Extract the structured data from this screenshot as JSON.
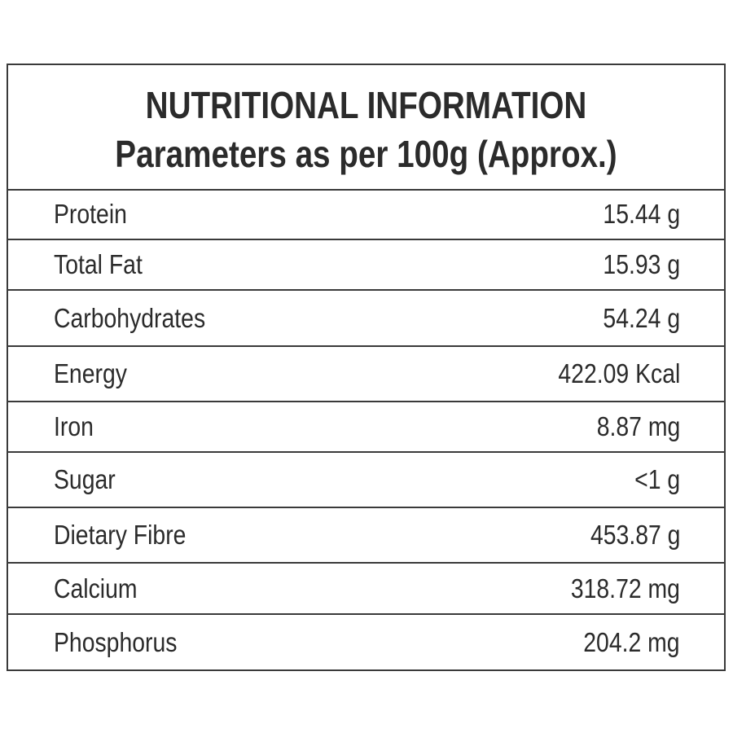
{
  "header": {
    "title": "NUTRITIONAL INFORMATION",
    "subtitle": "Parameters as per 100g (Approx.)"
  },
  "rows": [
    {
      "label": "Protein",
      "value": "15.44 g"
    },
    {
      "label": "Total Fat",
      "value": "15.93 g"
    },
    {
      "label": "Carbohydrates",
      "value": "54.24 g"
    },
    {
      "label": "Energy",
      "value": "422.09 Kcal"
    },
    {
      "label": "Iron",
      "value": "8.87 mg"
    },
    {
      "label": "Sugar",
      "value": "<1 g"
    },
    {
      "label": "Dietary Fibre",
      "value": "453.87 g"
    },
    {
      "label": "Calcium",
      "value": "318.72 mg"
    },
    {
      "label": "Phosphorus",
      "value": "204.2 mg"
    }
  ]
}
